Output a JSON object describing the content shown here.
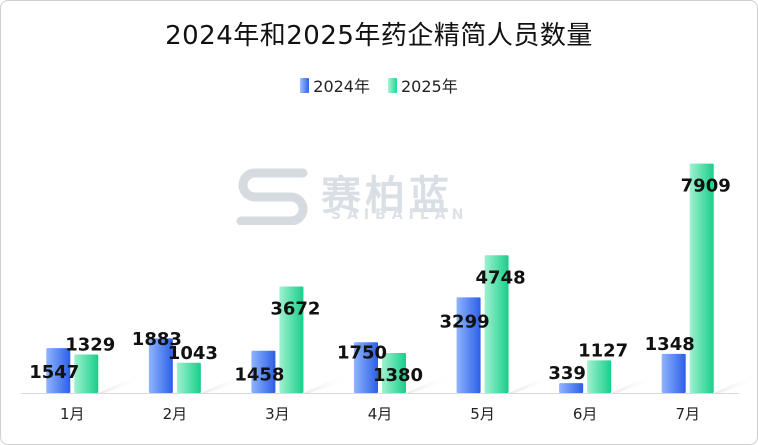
{
  "title": "2024年和2025年药企精简人员数量",
  "legend": {
    "a": "2024年",
    "b": "2025年"
  },
  "watermark": {
    "brand": "赛柏蓝",
    "sub": "SAIBAILAN"
  },
  "colors": {
    "s2024": "#3565ea",
    "s2025": "#22d894"
  },
  "chart_data": {
    "type": "bar",
    "title": "2024年和2025年药企精简人员数量",
    "categories": [
      "1月",
      "2月",
      "3月",
      "4月",
      "5月",
      "6月",
      "7月"
    ],
    "series": [
      {
        "name": "2024年",
        "values": [
          1547,
          1883,
          1458,
          1750,
          3299,
          339,
          1348
        ]
      },
      {
        "name": "2025年",
        "values": [
          1329,
          1043,
          3672,
          1380,
          4748,
          1127,
          7909
        ]
      }
    ],
    "xlabel": "",
    "ylabel": "",
    "ylim": [
      0,
      8000
    ],
    "grid": false,
    "legend_position": "top-center"
  }
}
